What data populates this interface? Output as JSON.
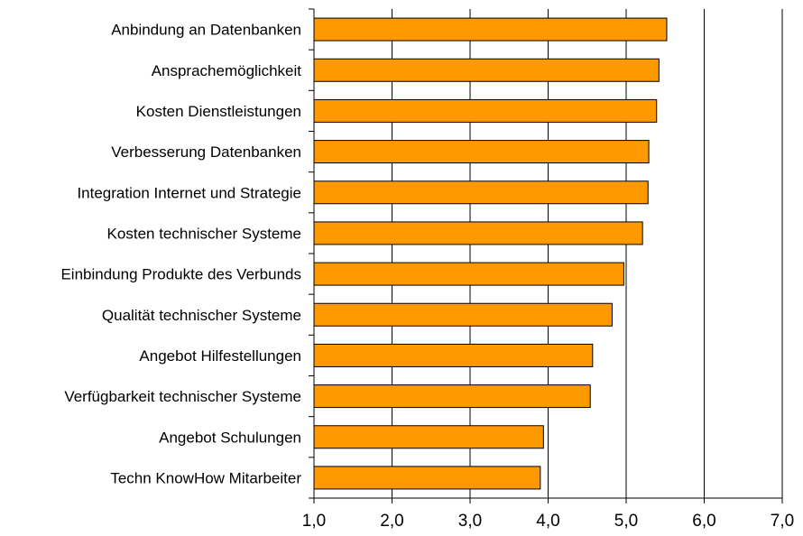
{
  "chart_data": {
    "type": "bar",
    "orientation": "horizontal",
    "title": "",
    "xlabel": "",
    "ylabel": "",
    "categories": [
      "Anbindung an Datenbanken",
      "Ansprachemöglichkeit",
      "Kosten Dienstleistungen",
      "Verbesserung Datenbanken",
      "Integration Internet und Strategie",
      "Kosten technischer Systeme",
      "Einbindung Produkte des Verbunds",
      "Qualität technischer Systeme",
      "Angebot Hilfestellungen",
      "Verfügbarkeit technischer Systeme",
      "Angebot Schulungen",
      "Techn KnowHow Mitarbeiter"
    ],
    "values": [
      5.52,
      5.42,
      5.39,
      5.29,
      5.28,
      5.21,
      4.97,
      4.82,
      4.57,
      4.54,
      3.94,
      3.9
    ],
    "xlim": [
      1.0,
      7.0
    ],
    "xticks": [
      "1,0",
      "2,0",
      "3,0",
      "4,0",
      "5,0",
      "6,0",
      "7,0"
    ],
    "xtick_values": [
      1,
      2,
      3,
      4,
      5,
      6,
      7
    ],
    "grid": "vertical major gridlines",
    "legend": "none",
    "bar_color": "#ff9900",
    "bar_edge_color": "#000000",
    "axis_color": "#000000"
  }
}
